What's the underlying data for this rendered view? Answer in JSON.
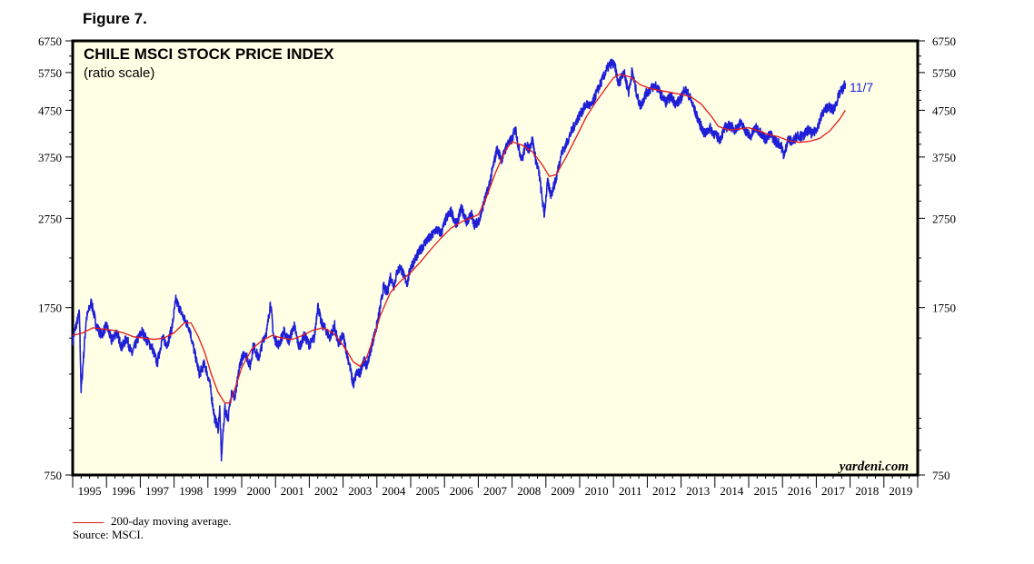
{
  "figure_label": "Figure 7.",
  "chart_data": {
    "type": "line",
    "title": "CHILE MSCI STOCK PRICE INDEX",
    "subtitle": "(ratio scale)",
    "x_labels": [
      "1995",
      "1996",
      "1997",
      "1998",
      "1999",
      "2000",
      "2001",
      "2002",
      "2003",
      "2004",
      "2005",
      "2006",
      "2007",
      "2008",
      "2009",
      "2010",
      "2011",
      "2012",
      "2013",
      "2014",
      "2015",
      "2016",
      "2017",
      "2018",
      "2019"
    ],
    "xlim": [
      1995.0,
      2020.0
    ],
    "y_scale": "log",
    "ylim": [
      750,
      6750
    ],
    "y_ticks": [
      750,
      1750,
      2750,
      3750,
      4750,
      5750,
      6750
    ],
    "y_tick_labels": [
      "750",
      "1750",
      "2750",
      "3750",
      "4750",
      "5750",
      "6750"
    ],
    "series": [
      {
        "name": "",
        "color": "#1f1fd8",
        "style": "daily",
        "points": [
          [
            1995.0,
            1480
          ],
          [
            1995.1,
            1600
          ],
          [
            1995.2,
            1700
          ],
          [
            1995.25,
            1150
          ],
          [
            1995.4,
            1650
          ],
          [
            1995.55,
            1800
          ],
          [
            1995.7,
            1600
          ],
          [
            1995.85,
            1520
          ],
          [
            1996.0,
            1600
          ],
          [
            1996.15,
            1480
          ],
          [
            1996.3,
            1550
          ],
          [
            1996.45,
            1430
          ],
          [
            1996.6,
            1500
          ],
          [
            1996.75,
            1380
          ],
          [
            1996.9,
            1480
          ],
          [
            1997.05,
            1550
          ],
          [
            1997.2,
            1480
          ],
          [
            1997.35,
            1430
          ],
          [
            1997.5,
            1320
          ],
          [
            1997.65,
            1500
          ],
          [
            1997.8,
            1450
          ],
          [
            1997.95,
            1600
          ],
          [
            1998.05,
            1820
          ],
          [
            1998.15,
            1750
          ],
          [
            1998.3,
            1650
          ],
          [
            1998.45,
            1580
          ],
          [
            1998.6,
            1400
          ],
          [
            1998.75,
            1250
          ],
          [
            1998.9,
            1320
          ],
          [
            1999.05,
            1200
          ],
          [
            1999.2,
            1000
          ],
          [
            1999.3,
            950
          ],
          [
            1999.35,
            1050
          ],
          [
            1999.4,
            820
          ],
          [
            1999.5,
            1050
          ],
          [
            1999.6,
            1000
          ],
          [
            1999.7,
            1150
          ],
          [
            1999.8,
            1100
          ],
          [
            1999.95,
            1320
          ],
          [
            2000.1,
            1400
          ],
          [
            2000.25,
            1300
          ],
          [
            2000.35,
            1450
          ],
          [
            2000.5,
            1350
          ],
          [
            2000.65,
            1500
          ],
          [
            2000.75,
            1560
          ],
          [
            2000.85,
            1800
          ],
          [
            2000.95,
            1500
          ],
          [
            2001.1,
            1450
          ],
          [
            2001.25,
            1550
          ],
          [
            2001.4,
            1480
          ],
          [
            2001.55,
            1600
          ],
          [
            2001.7,
            1430
          ],
          [
            2001.85,
            1520
          ],
          [
            2002.0,
            1450
          ],
          [
            2002.15,
            1500
          ],
          [
            2002.25,
            1780
          ],
          [
            2002.35,
            1620
          ],
          [
            2002.5,
            1560
          ],
          [
            2002.6,
            1500
          ],
          [
            2002.75,
            1600
          ],
          [
            2002.85,
            1450
          ],
          [
            2003.0,
            1520
          ],
          [
            2003.1,
            1400
          ],
          [
            2003.2,
            1300
          ],
          [
            2003.3,
            1180
          ],
          [
            2003.4,
            1260
          ],
          [
            2003.5,
            1250
          ],
          [
            2003.6,
            1350
          ],
          [
            2003.7,
            1300
          ],
          [
            2003.85,
            1450
          ],
          [
            2004.0,
            1600
          ],
          [
            2004.1,
            1750
          ],
          [
            2004.2,
            1950
          ],
          [
            2004.3,
            1880
          ],
          [
            2004.4,
            2050
          ],
          [
            2004.5,
            1950
          ],
          [
            2004.6,
            2100
          ],
          [
            2004.7,
            2150
          ],
          [
            2004.8,
            2050
          ],
          [
            2004.9,
            1980
          ],
          [
            2005.0,
            2150
          ],
          [
            2005.15,
            2250
          ],
          [
            2005.3,
            2350
          ],
          [
            2005.45,
            2450
          ],
          [
            2005.6,
            2500
          ],
          [
            2005.75,
            2600
          ],
          [
            2005.9,
            2550
          ],
          [
            2006.05,
            2750
          ],
          [
            2006.2,
            2850
          ],
          [
            2006.35,
            2650
          ],
          [
            2006.5,
            2900
          ],
          [
            2006.65,
            2700
          ],
          [
            2006.8,
            2800
          ],
          [
            2006.9,
            2650
          ],
          [
            2007.05,
            2750
          ],
          [
            2007.15,
            2950
          ],
          [
            2007.3,
            3200
          ],
          [
            2007.45,
            3600
          ],
          [
            2007.55,
            3900
          ],
          [
            2007.7,
            3700
          ],
          [
            2007.85,
            4000
          ],
          [
            2008.0,
            4100
          ],
          [
            2008.1,
            4350
          ],
          [
            2008.2,
            3900
          ],
          [
            2008.3,
            3700
          ],
          [
            2008.4,
            4000
          ],
          [
            2008.5,
            3900
          ],
          [
            2008.6,
            4100
          ],
          [
            2008.7,
            3700
          ],
          [
            2008.8,
            3450
          ],
          [
            2008.9,
            3000
          ],
          [
            2008.95,
            2800
          ],
          [
            2009.05,
            3300
          ],
          [
            2009.15,
            3100
          ],
          [
            2009.3,
            3350
          ],
          [
            2009.45,
            3800
          ],
          [
            2009.6,
            4000
          ],
          [
            2009.75,
            4250
          ],
          [
            2009.9,
            4500
          ],
          [
            2010.05,
            4700
          ],
          [
            2010.2,
            4900
          ],
          [
            2010.35,
            4850
          ],
          [
            2010.5,
            5200
          ],
          [
            2010.65,
            5500
          ],
          [
            2010.8,
            5850
          ],
          [
            2010.95,
            6050
          ],
          [
            2011.05,
            5900
          ],
          [
            2011.15,
            5400
          ],
          [
            2011.3,
            5800
          ],
          [
            2011.45,
            5200
          ],
          [
            2011.55,
            5800
          ],
          [
            2011.7,
            5100
          ],
          [
            2011.8,
            4850
          ],
          [
            2011.95,
            5150
          ],
          [
            2012.1,
            5300
          ],
          [
            2012.25,
            5400
          ],
          [
            2012.4,
            5150
          ],
          [
            2012.55,
            4950
          ],
          [
            2012.7,
            5100
          ],
          [
            2012.85,
            4900
          ],
          [
            2013.0,
            5050
          ],
          [
            2013.1,
            5300
          ],
          [
            2013.25,
            5100
          ],
          [
            2013.4,
            4750
          ],
          [
            2013.55,
            4450
          ],
          [
            2013.7,
            4200
          ],
          [
            2013.85,
            4350
          ],
          [
            2014.0,
            4200
          ],
          [
            2014.15,
            4100
          ],
          [
            2014.3,
            4350
          ],
          [
            2014.45,
            4400
          ],
          [
            2014.6,
            4300
          ],
          [
            2014.75,
            4450
          ],
          [
            2014.9,
            4300
          ],
          [
            2015.05,
            4150
          ],
          [
            2015.2,
            4350
          ],
          [
            2015.35,
            4250
          ],
          [
            2015.5,
            4100
          ],
          [
            2015.65,
            4200
          ],
          [
            2015.8,
            4050
          ],
          [
            2015.95,
            4000
          ],
          [
            2016.05,
            3750
          ],
          [
            2016.15,
            4100
          ],
          [
            2016.3,
            4050
          ],
          [
            2016.45,
            4200
          ],
          [
            2016.6,
            4150
          ],
          [
            2016.75,
            4300
          ],
          [
            2016.9,
            4200
          ],
          [
            2017.05,
            4400
          ],
          [
            2017.2,
            4700
          ],
          [
            2017.35,
            4850
          ],
          [
            2017.5,
            4750
          ],
          [
            2017.6,
            4950
          ],
          [
            2017.7,
            5200
          ],
          [
            2017.8,
            5300
          ],
          [
            2017.86,
            5450
          ]
        ]
      },
      {
        "name": "200-day moving average.",
        "color": "#e31a1c",
        "style": "smooth",
        "points": [
          [
            1995.0,
            1520
          ],
          [
            1995.3,
            1540
          ],
          [
            1995.6,
            1580
          ],
          [
            1995.9,
            1570
          ],
          [
            1996.2,
            1560
          ],
          [
            1996.5,
            1540
          ],
          [
            1996.8,
            1510
          ],
          [
            1997.1,
            1500
          ],
          [
            1997.4,
            1490
          ],
          [
            1997.7,
            1500
          ],
          [
            1998.0,
            1540
          ],
          [
            1998.3,
            1620
          ],
          [
            1998.5,
            1620
          ],
          [
            1998.7,
            1520
          ],
          [
            1998.9,
            1400
          ],
          [
            1999.1,
            1250
          ],
          [
            1999.3,
            1140
          ],
          [
            1999.5,
            1080
          ],
          [
            1999.65,
            1080
          ],
          [
            1999.8,
            1160
          ],
          [
            2000.0,
            1290
          ],
          [
            2000.3,
            1420
          ],
          [
            2000.6,
            1480
          ],
          [
            2000.9,
            1520
          ],
          [
            2001.2,
            1500
          ],
          [
            2001.5,
            1490
          ],
          [
            2001.8,
            1520
          ],
          [
            2002.1,
            1560
          ],
          [
            2002.4,
            1580
          ],
          [
            2002.7,
            1540
          ],
          [
            2002.9,
            1480
          ],
          [
            2003.1,
            1410
          ],
          [
            2003.3,
            1330
          ],
          [
            2003.5,
            1300
          ],
          [
            2003.7,
            1360
          ],
          [
            2003.9,
            1500
          ],
          [
            2004.1,
            1680
          ],
          [
            2004.4,
            1890
          ],
          [
            2004.7,
            2000
          ],
          [
            2005.0,
            2090
          ],
          [
            2005.3,
            2210
          ],
          [
            2005.6,
            2350
          ],
          [
            2005.9,
            2490
          ],
          [
            2006.2,
            2620
          ],
          [
            2006.5,
            2700
          ],
          [
            2006.8,
            2760
          ],
          [
            2007.0,
            2800
          ],
          [
            2007.2,
            3000
          ],
          [
            2007.5,
            3450
          ],
          [
            2007.8,
            3880
          ],
          [
            2008.0,
            4050
          ],
          [
            2008.3,
            3980
          ],
          [
            2008.6,
            3850
          ],
          [
            2008.9,
            3600
          ],
          [
            2009.1,
            3400
          ],
          [
            2009.3,
            3430
          ],
          [
            2009.6,
            3750
          ],
          [
            2009.9,
            4150
          ],
          [
            2010.2,
            4600
          ],
          [
            2010.5,
            4980
          ],
          [
            2010.8,
            5350
          ],
          [
            2011.0,
            5600
          ],
          [
            2011.2,
            5700
          ],
          [
            2011.5,
            5620
          ],
          [
            2011.8,
            5400
          ],
          [
            2012.1,
            5300
          ],
          [
            2012.4,
            5250
          ],
          [
            2012.7,
            5200
          ],
          [
            2013.0,
            5150
          ],
          [
            2013.3,
            5080
          ],
          [
            2013.6,
            4900
          ],
          [
            2013.9,
            4600
          ],
          [
            2014.1,
            4380
          ],
          [
            2014.4,
            4300
          ],
          [
            2014.7,
            4320
          ],
          [
            2015.0,
            4350
          ],
          [
            2015.3,
            4280
          ],
          [
            2015.6,
            4200
          ],
          [
            2015.9,
            4150
          ],
          [
            2016.2,
            4070
          ],
          [
            2016.5,
            4040
          ],
          [
            2016.8,
            4060
          ],
          [
            2017.1,
            4120
          ],
          [
            2017.4,
            4280
          ],
          [
            2017.7,
            4550
          ],
          [
            2017.86,
            4750
          ]
        ]
      }
    ],
    "annotations": [
      "11/7",
      "yardeni.com"
    ]
  },
  "legend": {
    "ma_label": "200-day moving average.",
    "source": "Source: MSCI."
  }
}
